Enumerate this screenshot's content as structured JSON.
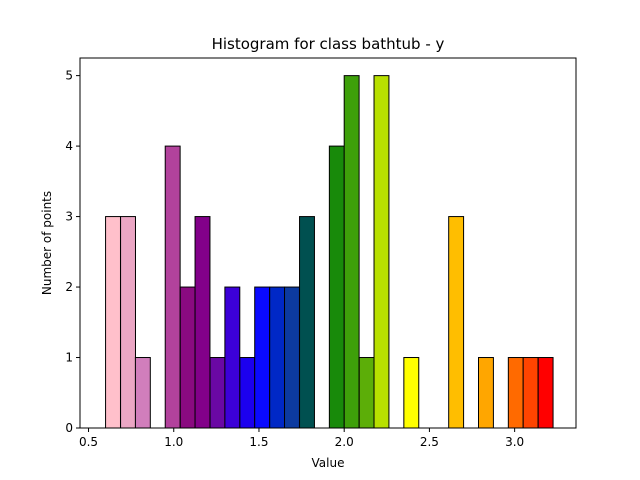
{
  "chart_data": {
    "type": "bar",
    "title": "Histogram for class bathtub - y",
    "xlabel": "Value",
    "ylabel": "Number of points",
    "xlim": [
      0.45,
      3.36
    ],
    "ylim": [
      0,
      5.25
    ],
    "xticks": [
      "0.5",
      "1.0",
      "1.5",
      "2.0",
      "2.5",
      "3.0"
    ],
    "xtick_values": [
      0.5,
      1.0,
      1.5,
      2.0,
      2.5,
      3.0
    ],
    "yticks": [
      "0",
      "1",
      "2",
      "3",
      "4",
      "5"
    ],
    "ytick_values": [
      0,
      1,
      2,
      3,
      4,
      5
    ],
    "grid": false,
    "bin_width": 0.0875,
    "bins": [
      {
        "x0": 0.6,
        "count": 3,
        "color": "#ffc0cb"
      },
      {
        "x0": 0.688,
        "count": 3,
        "color": "#eba6c4"
      },
      {
        "x0": 0.775,
        "count": 1,
        "color": "#d17ebc"
      },
      {
        "x0": 0.863,
        "count": 0,
        "color": "#c160b0"
      },
      {
        "x0": 0.95,
        "count": 4,
        "color": "#b2429c"
      },
      {
        "x0": 1.038,
        "count": 2,
        "color": "#8a0a80"
      },
      {
        "x0": 1.125,
        "count": 3,
        "color": "#820089"
      },
      {
        "x0": 1.213,
        "count": 1,
        "color": "#6a08a4"
      },
      {
        "x0": 1.3,
        "count": 2,
        "color": "#3c00d8"
      },
      {
        "x0": 1.388,
        "count": 1,
        "color": "#1c00ee"
      },
      {
        "x0": 1.475,
        "count": 2,
        "color": "#0a0aff"
      },
      {
        "x0": 1.563,
        "count": 2,
        "color": "#0028c6"
      },
      {
        "x0": 1.65,
        "count": 2,
        "color": "#0c3aa0"
      },
      {
        "x0": 1.738,
        "count": 3,
        "color": "#005050"
      },
      {
        "x0": 1.825,
        "count": 0,
        "color": "#10600e"
      },
      {
        "x0": 1.913,
        "count": 4,
        "color": "#188a0a"
      },
      {
        "x0": 2.0,
        "count": 5,
        "color": "#3ea00a"
      },
      {
        "x0": 2.088,
        "count": 1,
        "color": "#5cae08"
      },
      {
        "x0": 2.175,
        "count": 5,
        "color": "#b8e000"
      },
      {
        "x0": 2.263,
        "count": 0,
        "color": "#e6ee00"
      },
      {
        "x0": 2.35,
        "count": 1,
        "color": "#ffff00"
      },
      {
        "x0": 2.438,
        "count": 0,
        "color": "#ffe000"
      },
      {
        "x0": 2.525,
        "count": 0,
        "color": "#ffd000"
      },
      {
        "x0": 2.613,
        "count": 3,
        "color": "#ffbe00"
      },
      {
        "x0": 2.7,
        "count": 0,
        "color": "#ffb400"
      },
      {
        "x0": 2.788,
        "count": 1,
        "color": "#ffa600"
      },
      {
        "x0": 2.875,
        "count": 0,
        "color": "#ff8c00"
      },
      {
        "x0": 2.963,
        "count": 1,
        "color": "#ff6a00"
      },
      {
        "x0": 3.05,
        "count": 1,
        "color": "#ff4400"
      },
      {
        "x0": 3.138,
        "count": 1,
        "color": "#ff0000"
      }
    ],
    "bar_edge_color": "#000000"
  }
}
